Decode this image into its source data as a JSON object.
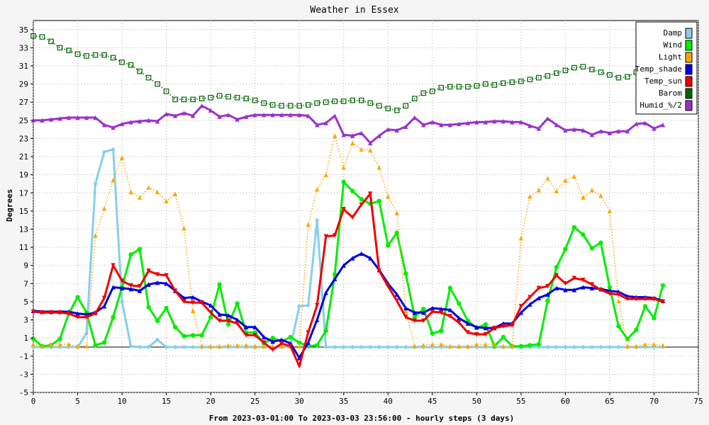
{
  "chart_data": {
    "type": "line",
    "title": "Weather in Essex",
    "xlabel": "From 2023-03-01:00 To 2023-03-03 23:56:00 - hourly steps (3 days)",
    "ylabel": "Degrees",
    "xlim": [
      0,
      75
    ],
    "ylim": [
      -5,
      36
    ],
    "xticks": [
      0,
      5,
      10,
      15,
      20,
      25,
      30,
      35,
      40,
      45,
      50,
      55,
      60,
      65,
      70,
      75
    ],
    "yticks": [
      -5,
      -3,
      -1,
      1,
      3,
      5,
      7,
      9,
      11,
      13,
      15,
      17,
      19,
      21,
      23,
      25,
      27,
      29,
      31,
      33,
      35
    ],
    "grid": true,
    "legend": "top-right",
    "series": [
      {
        "name": "Damp",
        "color": "#87ceeb",
        "style": "solid",
        "marker": "diamond",
        "values": [
          0,
          0,
          0,
          0,
          0,
          0,
          1.5,
          18,
          21.5,
          21.8,
          5,
          0.1,
          0,
          0,
          0.8,
          0,
          0,
          0,
          0,
          0,
          0,
          0,
          0,
          0,
          0,
          0,
          0,
          0,
          0,
          0,
          4.5,
          4.6,
          14,
          0,
          0,
          0,
          0,
          0,
          0,
          0,
          0,
          0,
          0,
          0,
          0,
          0,
          0,
          0,
          0,
          0,
          0,
          0,
          0,
          0,
          0,
          0,
          0,
          0,
          0,
          0,
          0,
          0,
          0,
          0,
          0,
          0,
          0,
          0,
          0,
          0,
          0,
          0
        ]
      },
      {
        "name": "Wind",
        "color": "#00ee00",
        "style": "solid",
        "marker": "circle",
        "values": [
          0.9,
          0.1,
          0.2,
          0.9,
          3.7,
          5.5,
          3.8,
          0.2,
          0.5,
          3.3,
          6.6,
          10.2,
          10.8,
          4.4,
          2.9,
          4.3,
          2.2,
          1.2,
          1.3,
          1.3,
          3.3,
          6.9,
          2.5,
          4.8,
          1.6,
          1.6,
          0.4,
          1.0,
          0.6,
          1.1,
          0.5,
          0.1,
          0.2,
          1.8,
          8.0,
          18.2,
          17.2,
          16.3,
          15.8,
          16.1,
          11.2,
          12.6,
          8.1,
          3.3,
          4.2,
          1.5,
          1.8,
          6.5,
          4.8,
          2.9,
          2.1,
          2.5,
          0.1,
          1.1,
          0.1,
          0.1,
          0.2,
          0.3,
          5.1,
          8.8,
          10.8,
          13.2,
          12.4,
          10.9,
          11.5,
          6.6,
          2.3,
          0.9,
          1.9,
          4.5,
          3.2,
          6.8
        ]
      },
      {
        "name": "Light",
        "color": "#ffa500",
        "style": "dotted",
        "marker": "triangle",
        "values": [
          0.3,
          0.1,
          0.3,
          0.3,
          0.3,
          0.1,
          0.1,
          12.3,
          15.3,
          18.4,
          20.9,
          17.1,
          16.5,
          17.6,
          17.1,
          16.1,
          16.9,
          13.1,
          4.0,
          0.1,
          0.1,
          0.1,
          0.2,
          0.2,
          0.2,
          0.1,
          0.1,
          0.1,
          0.1,
          0.1,
          0.1,
          13.5,
          17.4,
          19.0,
          23.3,
          19.8,
          22.5,
          21.8,
          21.7,
          19.8,
          16.6,
          14.8,
          4.0,
          0.1,
          0.2,
          0.3,
          0.3,
          0.1,
          0.1,
          0.1,
          0.3,
          0.3,
          0.3,
          0.1,
          0.1,
          12.0,
          16.6,
          17.3,
          18.6,
          17.2,
          18.4,
          18.8,
          16.5,
          17.3,
          16.7,
          15.0,
          5.1,
          0.1,
          0.1,
          0.3,
          0.3,
          0.2
        ]
      },
      {
        "name": "Temp_shade",
        "color": "#0000dd",
        "style": "solid",
        "marker": "triangle",
        "values": [
          4.0,
          3.9,
          3.9,
          3.9,
          3.9,
          3.7,
          3.6,
          3.8,
          4.5,
          6.6,
          6.5,
          6.4,
          6.2,
          6.9,
          7.1,
          7.0,
          6.2,
          5.4,
          5.5,
          5.0,
          4.6,
          3.6,
          3.5,
          3.0,
          2.2,
          2.2,
          1.1,
          0.6,
          0.8,
          0.4,
          -1.2,
          0.5,
          3.0,
          6.0,
          7.5,
          9.0,
          9.8,
          10.3,
          9.8,
          8.5,
          7.0,
          5.8,
          4.3,
          3.8,
          3.8,
          4.3,
          4.2,
          4.1,
          3.2,
          2.6,
          2.2,
          2.1,
          2.1,
          2.6,
          2.6,
          3.8,
          4.7,
          5.4,
          5.8,
          6.5,
          6.3,
          6.3,
          6.6,
          6.5,
          6.4,
          6.2,
          6.1,
          5.6,
          5.5,
          5.5,
          5.4,
          5.1
        ]
      },
      {
        "name": "Temp_sun",
        "color": "#ee0000",
        "style": "solid",
        "marker": "triangle-down",
        "values": [
          3.9,
          3.8,
          3.8,
          3.8,
          3.7,
          3.3,
          3.3,
          3.7,
          5.4,
          9.0,
          7.3,
          6.8,
          6.7,
          8.4,
          8.0,
          7.9,
          6.2,
          5.0,
          4.9,
          4.9,
          3.8,
          2.9,
          2.9,
          2.6,
          1.3,
          1.3,
          0.5,
          -0.3,
          0.4,
          0.1,
          -2.1,
          1.6,
          4.6,
          12.2,
          12.3,
          15.2,
          14.3,
          15.7,
          16.9,
          8.4,
          6.7,
          5.1,
          3.3,
          2.9,
          2.9,
          3.9,
          3.8,
          3.4,
          2.7,
          1.6,
          1.4,
          1.4,
          2.1,
          2.3,
          2.4,
          4.5,
          5.5,
          6.5,
          6.7,
          7.9,
          7.0,
          7.6,
          7.4,
          6.9,
          6.3,
          5.9,
          5.8,
          5.3,
          5.3,
          5.3,
          5.3,
          5.0
        ]
      },
      {
        "name": "Barom",
        "color": "#006400",
        "style": "dotted",
        "marker": "square",
        "values": [
          34.3,
          34.2,
          33.7,
          33.0,
          32.7,
          32.3,
          32.1,
          32.2,
          32.2,
          31.9,
          31.4,
          31.1,
          30.4,
          29.7,
          29.0,
          28.2,
          27.3,
          27.3,
          27.3,
          27.4,
          27.5,
          27.7,
          27.6,
          27.5,
          27.4,
          27.2,
          26.9,
          26.7,
          26.6,
          26.6,
          26.6,
          26.7,
          26.9,
          27.0,
          27.1,
          27.1,
          27.2,
          27.2,
          26.9,
          26.6,
          26.3,
          26.1,
          26.6,
          27.4,
          28.0,
          28.2,
          28.6,
          28.7,
          28.7,
          28.7,
          28.8,
          29.0,
          28.9,
          29.1,
          29.2,
          29.3,
          29.5,
          29.7,
          29.9,
          30.2,
          30.5,
          30.8,
          30.9,
          30.6,
          30.3,
          30.0,
          29.7,
          29.8,
          30.3,
          30.6,
          30.8,
          31.2
        ]
      },
      {
        "name": "Humid_%/2",
        "color": "#9932cc",
        "style": "solid",
        "marker": "triangle",
        "values": [
          25.0,
          25.0,
          25.1,
          25.2,
          25.3,
          25.3,
          25.3,
          25.3,
          24.5,
          24.2,
          24.6,
          24.8,
          24.9,
          25.0,
          24.9,
          25.7,
          25.5,
          25.8,
          25.5,
          26.6,
          26.1,
          25.4,
          25.6,
          25.1,
          25.4,
          25.6,
          25.6,
          25.6,
          25.6,
          25.6,
          25.6,
          25.5,
          24.5,
          24.7,
          25.5,
          23.4,
          23.3,
          23.6,
          22.5,
          23.3,
          24.0,
          23.9,
          24.3,
          25.3,
          24.5,
          24.8,
          24.5,
          24.5,
          24.6,
          24.7,
          24.8,
          24.8,
          24.9,
          24.9,
          24.8,
          24.8,
          24.4,
          24.1,
          25.2,
          24.5,
          23.9,
          24.0,
          23.9,
          23.4,
          23.8,
          23.6,
          23.8,
          23.8,
          24.6,
          24.7,
          24.1,
          24.5
        ]
      }
    ]
  }
}
